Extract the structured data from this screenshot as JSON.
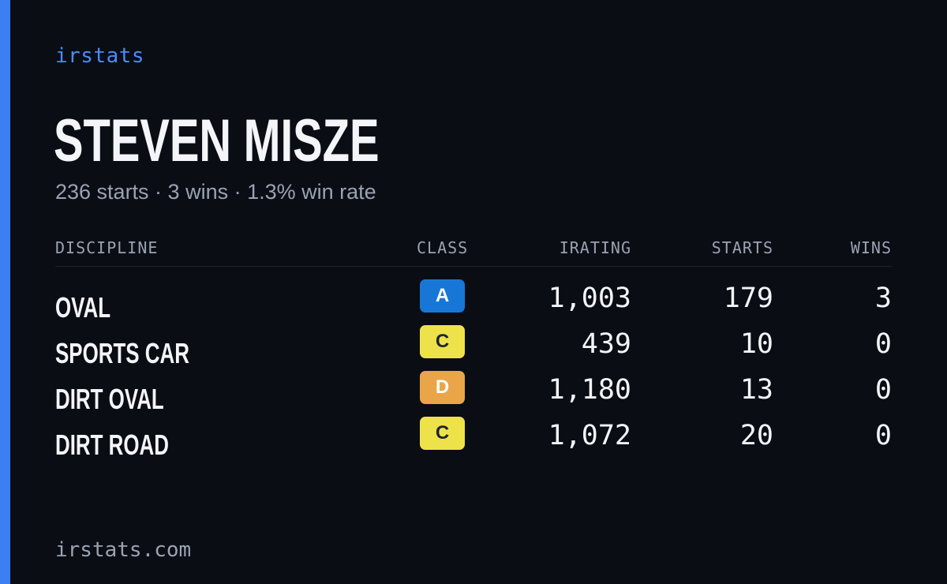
{
  "brand": "irstats",
  "driver": {
    "name": "STEVEN MISZE",
    "summary": "236 starts · 3 wins · 1.3% win rate"
  },
  "table": {
    "headers": {
      "discipline": "DISCIPLINE",
      "class": "CLASS",
      "irating": "IRATING",
      "starts": "STARTS",
      "wins": "WINS"
    },
    "rows": [
      {
        "discipline": "OVAL",
        "class": "A",
        "class_color": "#1877d6",
        "class_text_color": "#ffffff",
        "irating": "1,003",
        "starts": "179",
        "wins": "3"
      },
      {
        "discipline": "SPORTS CAR",
        "class": "C",
        "class_color": "#eee24a",
        "class_text_color": "#1f2430",
        "irating": "439",
        "starts": "10",
        "wins": "0"
      },
      {
        "discipline": "DIRT OVAL",
        "class": "D",
        "class_color": "#eba549",
        "class_text_color": "#ffffff",
        "irating": "1,180",
        "starts": "13",
        "wins": "0"
      },
      {
        "discipline": "DIRT ROAD",
        "class": "C",
        "class_color": "#eee24a",
        "class_text_color": "#1f2430",
        "irating": "1,072",
        "starts": "20",
        "wins": "0"
      }
    ]
  },
  "footer": "irstats.com",
  "colors": {
    "background": "#0a0d14",
    "accent": "#3b7ff2",
    "brand": "#4a8cf5",
    "muted": "#9aa3b3",
    "text": "#f3f5f8"
  }
}
